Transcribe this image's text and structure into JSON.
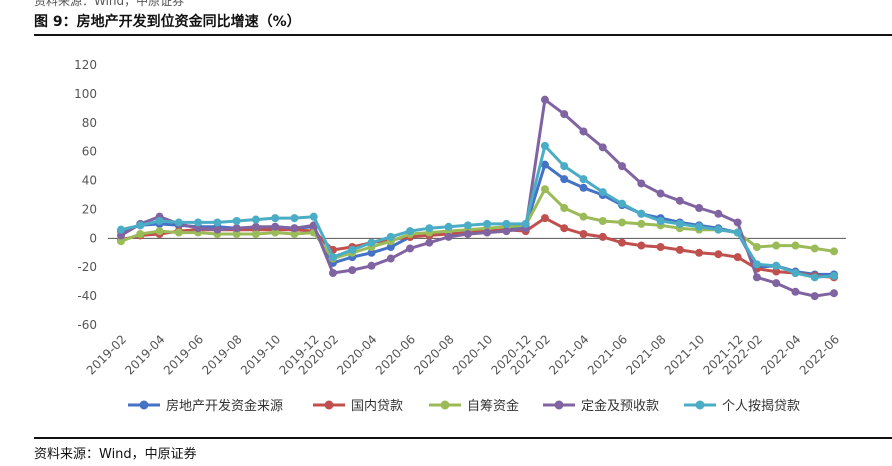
{
  "header": {
    "top_text": "资料来源：Wind，中原证券",
    "title": "图 9：房地产开发到位资金同比增速（%）"
  },
  "footer": {
    "source": "资料来源：Wind，中原证券"
  },
  "chart_data": {
    "type": "line",
    "title": "房地产开发到位资金同比增速（%）",
    "xlabel": "",
    "ylabel": "",
    "ylim": [
      -60,
      120
    ],
    "yticks": [
      120,
      100,
      80,
      60,
      40,
      20,
      0,
      -20,
      -40,
      -60
    ],
    "x": [
      "2019-02",
      "2019-03",
      "2019-04",
      "2019-05",
      "2019-06",
      "2019-07",
      "2019-08",
      "2019-09",
      "2019-10",
      "2019-11",
      "2019-12",
      "2020-02",
      "2020-03",
      "2020-04",
      "2020-05",
      "2020-06",
      "2020-07",
      "2020-08",
      "2020-09",
      "2020-10",
      "2020-11",
      "2020-12",
      "2021-02",
      "2021-03",
      "2021-04",
      "2021-05",
      "2021-06",
      "2021-07",
      "2021-08",
      "2021-09",
      "2021-10",
      "2021-11",
      "2021-12",
      "2022-02",
      "2022-03",
      "2022-04",
      "2022-05",
      "2022-06"
    ],
    "xtick_labels": [
      "2019-02",
      "2019-04",
      "2019-06",
      "2019-08",
      "2019-10",
      "2019-12",
      "2020-02",
      "2020-04",
      "2020-06",
      "2020-08",
      "2020-10",
      "2020-12",
      "2021-02",
      "2021-04",
      "2021-06",
      "2021-08",
      "2021-10",
      "2021-12",
      "2022-02",
      "2022-04",
      "2022-06"
    ],
    "series": [
      {
        "name": "房地产开发资金来源",
        "color": "#4472C4",
        "values": [
          5,
          9,
          10,
          9,
          8,
          8,
          7,
          7,
          8,
          7,
          8,
          -17,
          -13,
          -10,
          -6,
          1,
          3,
          3,
          4,
          5,
          6,
          8,
          51,
          41,
          35,
          30,
          23,
          17,
          14,
          11,
          9,
          7,
          4,
          -20,
          -19,
          -23,
          -25,
          -25
        ]
      },
      {
        "name": "国内贷款",
        "color": "#C0504D",
        "values": [
          -1,
          2,
          3,
          5,
          6,
          6,
          6,
          6,
          6,
          6,
          5,
          -8,
          -6,
          -3,
          -1,
          1,
          2,
          3,
          4,
          5,
          6,
          5,
          14,
          7,
          3,
          1,
          -3,
          -5,
          -6,
          -8,
          -10,
          -11,
          -13,
          -21,
          -23,
          -24,
          -26,
          -27
        ]
      },
      {
        "name": "自筹资金",
        "color": "#9BBB59",
        "values": [
          -2,
          3,
          5,
          4,
          4,
          3,
          3,
          3,
          4,
          3,
          4,
          -14,
          -10,
          -6,
          -2,
          3,
          4,
          5,
          6,
          7,
          8,
          9,
          34,
          21,
          15,
          12,
          11,
          10,
          9,
          7,
          6,
          6,
          4,
          -6,
          -5,
          -5,
          -7,
          -9
        ]
      },
      {
        "name": "定金及预收款",
        "color": "#8064A2",
        "values": [
          2,
          10,
          15,
          10,
          7,
          6,
          7,
          8,
          8,
          7,
          9,
          -24,
          -22,
          -19,
          -14,
          -7,
          -3,
          1,
          3,
          4,
          5,
          7,
          96,
          86,
          74,
          63,
          50,
          38,
          31,
          26,
          21,
          17,
          11,
          -27,
          -31,
          -37,
          -40,
          -38
        ]
      },
      {
        "name": "个人按揭贷款",
        "color": "#4BACC6",
        "values": [
          6,
          9,
          12,
          11,
          11,
          11,
          12,
          13,
          14,
          14,
          15,
          -13,
          -8,
          -3,
          1,
          5,
          7,
          8,
          9,
          10,
          10,
          10,
          64,
          50,
          41,
          32,
          24,
          17,
          12,
          10,
          8,
          6,
          4,
          -18,
          -19,
          -24,
          -27,
          -26
        ]
      }
    ],
    "legend": {
      "position": "bottom"
    },
    "grid": false
  }
}
